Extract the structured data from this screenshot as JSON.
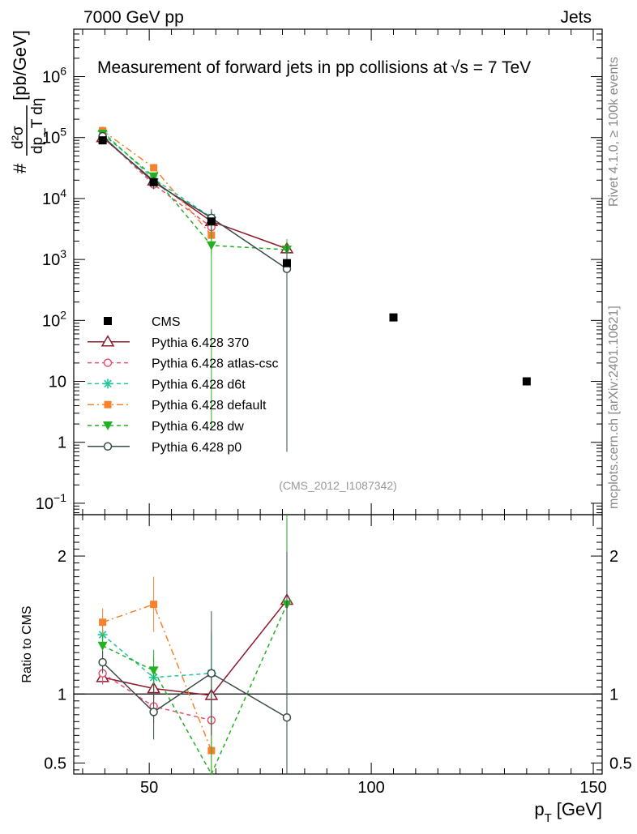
{
  "header": {
    "left": "7000 GeV pp",
    "right": "Jets"
  },
  "chart_data": {
    "type": "scatter",
    "title": "Measurement of forward jets in pp collisions at √s = 7 TeV",
    "title_prefix": "Measurement of forward jets in pp collisions at",
    "title_suffix": "s = 7 TeV",
    "sqrt_symbol": "√",
    "xlabel": "p_T [GeV]",
    "xlabel_main": "p",
    "xlabel_sub": "T",
    "xlabel_unit": "[GeV]",
    "ylabel": "# d²σ/dp_T dη [pb/GeV]",
    "ylabel_parts": {
      "hash": "#",
      "numerator": "d²σ",
      "denominator": "dp_T dη",
      "unit": "[pb/GeV]"
    },
    "ratio_ylabel": "Ratio to CMS",
    "xlim": [
      33,
      152
    ],
    "ylim_log": [
      0.065,
      6000000
    ],
    "ratio_ylim": [
      0.42,
      2.3
    ],
    "x_ticks": [
      50,
      100,
      150
    ],
    "y_ticks": [
      {
        "value": 0.1,
        "label": "10",
        "exp": "−1"
      },
      {
        "value": 1,
        "label": "1",
        "exp": ""
      },
      {
        "value": 10,
        "label": "10",
        "exp": ""
      },
      {
        "value": 100,
        "label": "10",
        "exp": "2"
      },
      {
        "value": 1000,
        "label": "10",
        "exp": "3"
      },
      {
        "value": 10000,
        "label": "10",
        "exp": "4"
      },
      {
        "value": 100000,
        "label": "10",
        "exp": "5"
      },
      {
        "value": 1000000,
        "label": "10",
        "exp": "6"
      }
    ],
    "ratio_ticks": [
      {
        "value": 0.5,
        "label": "0.5"
      },
      {
        "value": 1,
        "label": "1"
      },
      {
        "value": 2,
        "label": "2"
      }
    ],
    "reference": {
      "name": "CMS",
      "x": [
        39.5,
        51,
        64,
        81,
        105,
        135
      ],
      "y": [
        90000,
        18500,
        4200,
        870,
        112,
        10
      ]
    },
    "series": [
      {
        "name": "Pythia 6.428 370",
        "color": "#8b1a2b",
        "marker": "triangle-open",
        "dash": "",
        "x": [
          39.5,
          51,
          64,
          81
        ],
        "y": [
          100000,
          19500,
          4200,
          1500
        ],
        "ratio": [
          1.12,
          1.04,
          0.99,
          1.68
        ],
        "ratio_err": [
          0.05,
          0.07,
          0.12,
          0.6
        ]
      },
      {
        "name": "Pythia 6.428 atlas-csc",
        "color": "#e8506e",
        "marker": "circle-open",
        "dash": "5,4",
        "x": [
          39.5,
          51,
          64
        ],
        "y": [
          105000,
          17000,
          3400
        ],
        "ratio": [
          1.15,
          0.91,
          0.81
        ],
        "ratio_err": [
          0.08,
          0.12,
          0.2
        ]
      },
      {
        "name": "Pythia 6.428 d6t",
        "color": "#1fc79a",
        "marker": "star",
        "dash": "5,4",
        "x": [
          39.5,
          51,
          64
        ],
        "y": [
          125000,
          21000,
          4900
        ],
        "ratio": [
          1.43,
          1.12,
          1.15
        ],
        "ratio_err": [
          0.08,
          0.15,
          0.3
        ]
      },
      {
        "name": "Pythia 6.428 default",
        "color": "#f7822e",
        "marker": "square",
        "dash": "8,4,2,4",
        "x": [
          39.5,
          51,
          64
        ],
        "y": [
          130000,
          32000,
          2500
        ],
        "ratio": [
          1.52,
          1.65,
          0.59
        ],
        "ratio_err": [
          0.1,
          0.2,
          0.3
        ]
      },
      {
        "name": "Pythia 6.428 dw",
        "color": "#23b123",
        "marker": "triangle-down",
        "dash": "5,4",
        "x": [
          39.5,
          51,
          64,
          81
        ],
        "y": [
          115000,
          23000,
          1700,
          1450
        ],
        "ratio": [
          1.35,
          1.17,
          0.4,
          1.65
        ],
        "ratio_err": [
          0.08,
          0.15,
          0.5,
          0.8
        ]
      },
      {
        "name": "Pythia 6.428 p0",
        "color": "#3a4a4a",
        "marker": "circle-open",
        "dash": "",
        "x": [
          39.5,
          51,
          64,
          81
        ],
        "y": [
          105000,
          18500,
          4800,
          700
        ],
        "ratio": [
          1.23,
          0.87,
          1.15,
          0.83
        ],
        "ratio_err": [
          0.08,
          0.2,
          0.45,
          1.2
        ]
      }
    ],
    "side_labels": {
      "rivet": "Rivet 4.1.0, ≥ 100k events",
      "mcplots": "mcplots.cern.ch [arXiv:2401.10621]"
    },
    "analysis_id": "(CMS_2012_I1087342)"
  }
}
